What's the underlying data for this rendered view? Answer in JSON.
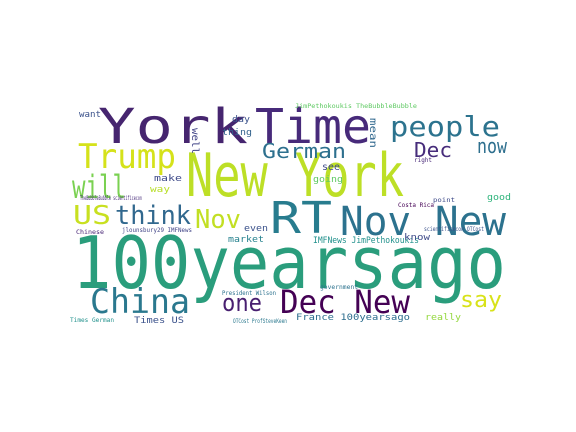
{
  "chart_data": {
    "type": "wordcloud",
    "words": [
      {
        "text": "100yearsago",
        "color": "#2a9d7c"
      },
      {
        "text": "New York",
        "color": "#bddf26"
      },
      {
        "text": "York",
        "color": "#46256f"
      },
      {
        "text": "Time",
        "color": "#472a7a"
      },
      {
        "text": "RT",
        "color": "#287c8e"
      },
      {
        "text": "Nov New",
        "color": "#2c728e"
      },
      {
        "text": "China",
        "color": "#2a788e"
      },
      {
        "text": "Dec New",
        "color": "#440154"
      },
      {
        "text": "people",
        "color": "#2c738e"
      },
      {
        "text": "Trump",
        "color": "#d5e21a"
      },
      {
        "text": "will",
        "color": "#7ad151"
      },
      {
        "text": "think",
        "color": "#31688e"
      },
      {
        "text": "US",
        "color": "#c8e020"
      },
      {
        "text": "Nov",
        "color": "#c2df23"
      },
      {
        "text": "German",
        "color": "#2d708e"
      },
      {
        "text": "Dec",
        "color": "#472d7b"
      },
      {
        "text": "now",
        "color": "#2e6f8e"
      },
      {
        "text": "one",
        "color": "#481f70"
      },
      {
        "text": "say",
        "color": "#d8e219"
      },
      {
        "text": "want",
        "color": "#3b528b"
      },
      {
        "text": "make",
        "color": "#3e4a89"
      },
      {
        "text": "way",
        "color": "#b8de29"
      },
      {
        "text": "day",
        "color": "#3b528b"
      },
      {
        "text": "thing",
        "color": "#33638d"
      },
      {
        "text": "well",
        "color": "#414487"
      },
      {
        "text": "mean",
        "color": "#31688e"
      },
      {
        "text": "see",
        "color": "#3e4989"
      },
      {
        "text": "going",
        "color": "#5ec962"
      },
      {
        "text": "even",
        "color": "#3b528b"
      },
      {
        "text": "market",
        "color": "#26828e"
      },
      {
        "text": "IMFNews JimPethokoukis",
        "color": "#21918c"
      },
      {
        "text": "know",
        "color": "#3e4a89"
      },
      {
        "text": "good",
        "color": "#2fb47c"
      },
      {
        "text": "really",
        "color": "#95d840"
      },
      {
        "text": "France 100yearsago",
        "color": "#2e6e8e"
      },
      {
        "text": "Times US",
        "color": "#3b528b"
      },
      {
        "text": "JimPethokoukis TheBubbleBubble",
        "color": "#5ec962"
      },
      {
        "text": "TheBubbleBubble scientificecon",
        "color": "#472c7a"
      },
      {
        "text": "jlounsbury29 IMFNews",
        "color": "#414487"
      },
      {
        "text": "President Wilson",
        "color": "#2c728e"
      },
      {
        "text": "Costa Rica",
        "color": "#440154"
      },
      {
        "text": "scientificecon OTCost",
        "color": "#3b528b"
      },
      {
        "text": "OTCost ProfSteveKeen",
        "color": "#2a788e"
      },
      {
        "text": "point",
        "color": "#3e4a89"
      },
      {
        "text": "right",
        "color": "#482878"
      },
      {
        "text": "government",
        "color": "#2c728e"
      },
      {
        "text": "Chinese",
        "color": "#482576"
      },
      {
        "text": "Times German",
        "color": "#21918c"
      }
    ]
  }
}
